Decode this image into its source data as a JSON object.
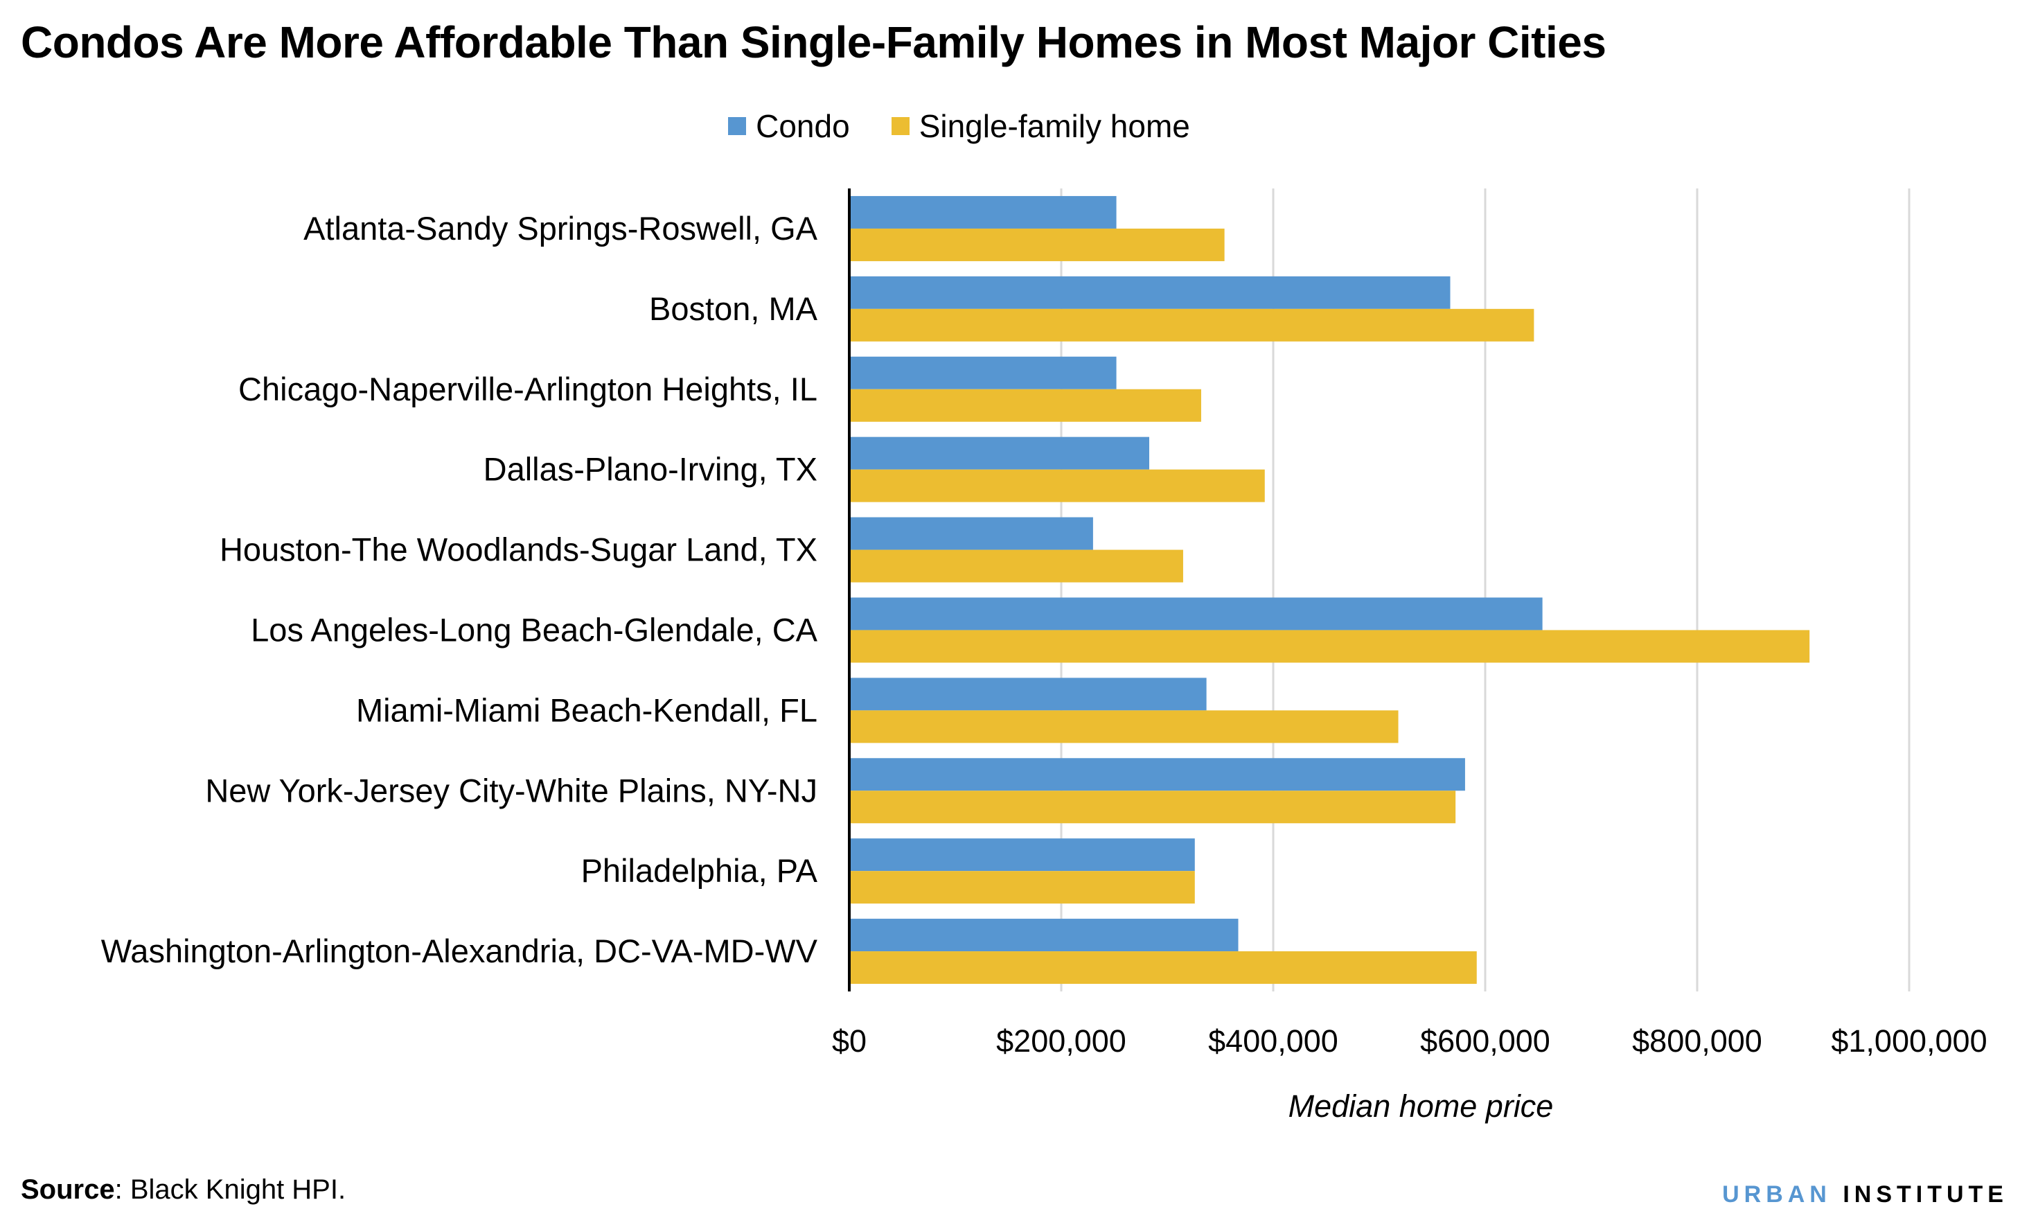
{
  "chart_data": {
    "type": "bar",
    "orientation": "horizontal",
    "title": "Condos Are More Affordable Than Single-Family Homes in Most Major Cities",
    "xlabel": "Median home price",
    "ylabel": "",
    "xlim": [
      0,
      1000000
    ],
    "xticks": [
      0,
      200000,
      400000,
      600000,
      800000,
      1000000
    ],
    "xtick_labels": [
      "$0",
      "$200,000",
      "$400,000",
      "$600,000",
      "$800,000",
      "$1,000,000"
    ],
    "grid": "vertical",
    "legend_position": "top",
    "categories": [
      "Atlanta-Sandy Springs-Roswell, GA",
      "Boston, MA",
      "Chicago-Naperville-Arlington Heights, IL",
      "Dallas-Plano-Irving, TX",
      "Houston-The Woodlands-Sugar Land, TX",
      "Los Angeles-Long Beach-Glendale, CA",
      "Miami-Miami Beach-Kendall, FL",
      "New York-Jersey City-White Plains, NY-NJ",
      "Philadelphia, PA",
      "Washington-Arlington-Alexandria, DC-VA-MD-WV"
    ],
    "series": [
      {
        "name": "Condo",
        "color": "#5796d1",
        "values": [
          252000,
          567000,
          252000,
          283000,
          230000,
          654000,
          337000,
          581000,
          326000,
          367000
        ]
      },
      {
        "name": "Single-family home",
        "color": "#ecbd31",
        "values": [
          354000,
          646000,
          332000,
          392000,
          315000,
          906000,
          518000,
          572000,
          326000,
          592000
        ]
      }
    ]
  },
  "footer": {
    "source_label": "Source",
    "source_text": ": Black Knight HPI.",
    "logo_part1": "URBAN",
    "logo_part2": "INSTITUTE"
  }
}
